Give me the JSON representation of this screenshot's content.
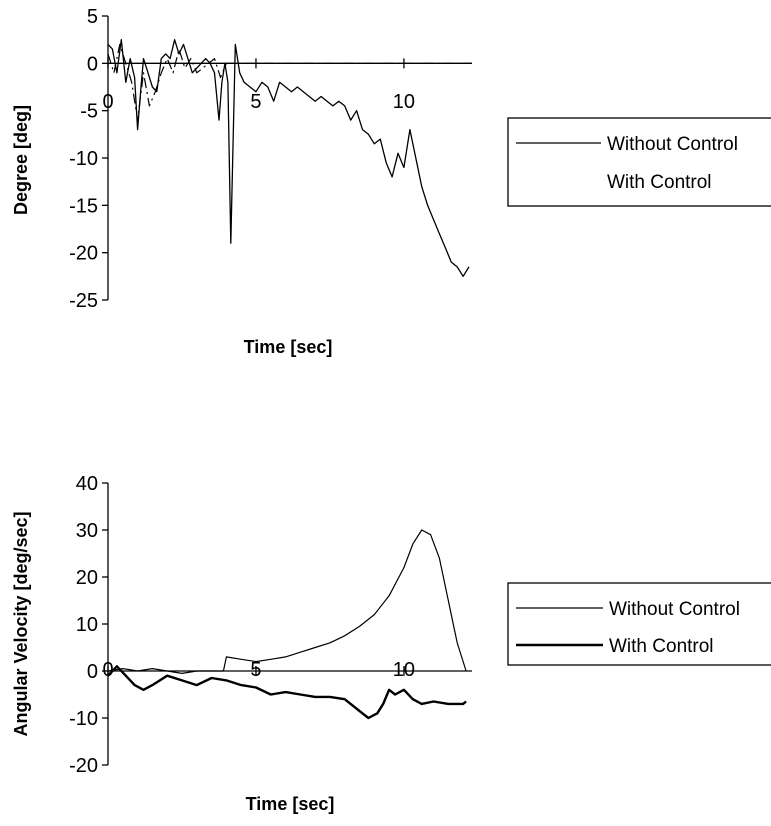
{
  "chart_data": [
    {
      "type": "line",
      "title": "",
      "xlabel": "Time [sec]",
      "ylabel": "Degree [deg]",
      "xlim": [
        0,
        12.3
      ],
      "ylim": [
        -25,
        5
      ],
      "xticks": [
        0,
        5,
        10
      ],
      "yticks": [
        5,
        0,
        -5,
        -10,
        -15,
        -20,
        -25
      ],
      "legend_position": "right",
      "series": [
        {
          "name": "Without Control",
          "line_style": "solid",
          "x": [
            0,
            0.15,
            0.3,
            0.45,
            0.6,
            0.75,
            0.9,
            1.0,
            1.1,
            1.2,
            1.35,
            1.5,
            1.65,
            1.8,
            1.95,
            2.1,
            2.25,
            2.4,
            2.55,
            2.7,
            2.85,
            3.0,
            3.15,
            3.3,
            3.45,
            3.6,
            3.75,
            3.85,
            3.95,
            4.05,
            4.15,
            4.3,
            4.45,
            4.6,
            4.8,
            5.0,
            5.2,
            5.4,
            5.6,
            5.8,
            6.0,
            6.2,
            6.4,
            6.6,
            6.8,
            7.0,
            7.2,
            7.4,
            7.6,
            7.8,
            8.0,
            8.2,
            8.4,
            8.6,
            8.8,
            9.0,
            9.2,
            9.4,
            9.6,
            9.8,
            10.0,
            10.2,
            10.4,
            10.6,
            10.8,
            11.0,
            11.2,
            11.4,
            11.6,
            11.8,
            12.0,
            12.2
          ],
          "y": [
            2,
            1.5,
            -1,
            2.5,
            -2,
            0.5,
            -1.5,
            -7,
            -3,
            0.5,
            -1,
            -2.5,
            -3,
            0.5,
            1,
            0.5,
            2.5,
            1,
            2,
            0.5,
            -1,
            -0.5,
            0,
            0.5,
            0,
            -1,
            -6,
            -2,
            0,
            -2,
            -19,
            2,
            -1,
            -2,
            -2.5,
            -3,
            -2,
            -2.5,
            -4,
            -2,
            -2.5,
            -3,
            -2.5,
            -3,
            -3.5,
            -4,
            -3.5,
            -4,
            -4.5,
            -4,
            -4.5,
            -6,
            -5,
            -7,
            -7.5,
            -8.5,
            -8,
            -10.5,
            -12,
            -9.5,
            -11,
            -7,
            -10,
            -13,
            -15,
            -16.5,
            -18,
            -19.5,
            -21,
            -21.5,
            -22.5,
            -21.5
          ]
        },
        {
          "name": "With Control",
          "line_style": "dash-dot",
          "x": [
            0,
            0.2,
            0.4,
            0.6,
            0.8,
            1.0,
            1.2,
            1.4,
            1.6,
            1.8,
            2.0,
            2.2,
            2.4,
            2.6,
            2.8,
            3.0,
            3.2,
            3.4,
            3.6,
            3.8,
            4.0,
            4.2,
            4.4,
            4.6,
            4.8,
            5.0,
            5.5,
            6.0,
            6.5,
            7.0,
            7.5,
            8.0,
            8.5,
            9.0,
            9.5,
            10.0,
            10.5,
            11.0,
            11.5,
            12.0,
            12.3
          ],
          "y": [
            1,
            -1,
            2,
            0,
            -2,
            -6,
            -1,
            -4.5,
            -3,
            -1,
            0.5,
            -1,
            1.5,
            -0.5,
            0.5,
            -1,
            -0.5,
            0,
            0.5,
            -1.5,
            0,
            0,
            0,
            0,
            0,
            0,
            0,
            0,
            0,
            0,
            0,
            0,
            0,
            0,
            0,
            0,
            0,
            0,
            0,
            0,
            0
          ]
        }
      ]
    },
    {
      "type": "line",
      "title": "",
      "xlabel": "Time [sec]",
      "ylabel": "Angular Velocity [deg/sec]",
      "xlim": [
        0,
        12.3
      ],
      "ylim": [
        -20,
        40
      ],
      "xticks": [
        0,
        5,
        10
      ],
      "yticks": [
        40,
        30,
        20,
        10,
        0,
        -10,
        -20
      ],
      "legend_position": "right",
      "series": [
        {
          "name": "Without Control",
          "line_style": "thin",
          "x": [
            0,
            0.5,
            1.0,
            1.5,
            2.0,
            2.5,
            3.0,
            3.5,
            3.9,
            4.0,
            4.5,
            5.0,
            5.5,
            6.0,
            6.5,
            7.0,
            7.5,
            8.0,
            8.5,
            9.0,
            9.5,
            10.0,
            10.3,
            10.6,
            10.9,
            11.2,
            11.5,
            11.8,
            12.1
          ],
          "y": [
            0,
            0.5,
            0,
            0.5,
            0,
            -0.5,
            0,
            0,
            0,
            3,
            2.5,
            2,
            2.5,
            3,
            4,
            5,
            6,
            7.5,
            9.5,
            12,
            16,
            22,
            27,
            30,
            29,
            24,
            15,
            6,
            0
          ]
        },
        {
          "name": "With Control",
          "line_style": "thick",
          "x": [
            0,
            0.3,
            0.6,
            0.9,
            1.2,
            1.5,
            2.0,
            2.5,
            3.0,
            3.5,
            4.0,
            4.5,
            5.0,
            5.5,
            6.0,
            6.5,
            7.0,
            7.5,
            8.0,
            8.5,
            8.8,
            9.1,
            9.3,
            9.5,
            9.7,
            10.0,
            10.3,
            10.6,
            11.0,
            11.5,
            12.0,
            12.1
          ],
          "y": [
            -1,
            1,
            -1,
            -3,
            -4,
            -3,
            -1,
            -2,
            -3,
            -1.5,
            -2,
            -3,
            -3.5,
            -5,
            -4.5,
            -5,
            -5.5,
            -5.5,
            -6,
            -8.5,
            -10,
            -9,
            -7,
            -4,
            -5,
            -4,
            -6,
            -7,
            -6.5,
            -7,
            -7,
            -6.5
          ]
        }
      ]
    }
  ]
}
